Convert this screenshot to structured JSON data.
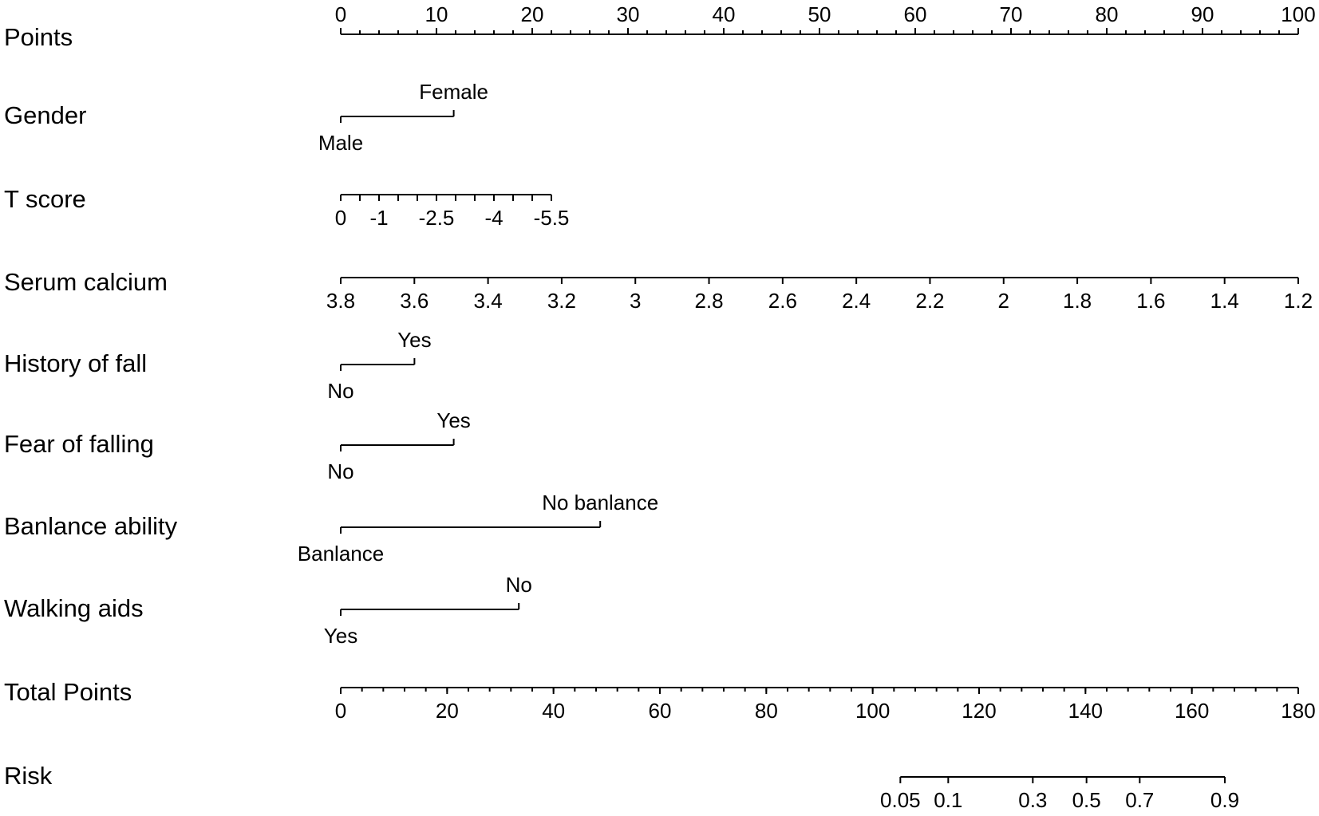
{
  "chart_data": {
    "type": "nomogram",
    "rows": [
      {
        "id": "points",
        "label": "Points",
        "kind": "axis",
        "labels_above": true,
        "scale_value": [
          0,
          100
        ],
        "major": [
          0,
          10,
          20,
          30,
          40,
          50,
          60,
          70,
          80,
          90,
          100
        ],
        "major_labels": [
          "0",
          "10",
          "20",
          "30",
          "40",
          "50",
          "60",
          "70",
          "80",
          "90",
          "100"
        ],
        "minor_step": 2
      },
      {
        "id": "gender",
        "label": "Gender",
        "kind": "categorical",
        "levels": [
          {
            "label": "Male",
            "points": 0
          },
          {
            "label": "Female",
            "points": 11.8
          }
        ]
      },
      {
        "id": "t-score",
        "label": "T score",
        "kind": "axis",
        "labels_above": false,
        "scale_value": [
          0,
          -5.5
        ],
        "scale_points": [
          0,
          22
        ],
        "major": [
          0,
          -0.5,
          -1,
          -1.5,
          -2,
          -2.5,
          -3,
          -3.5,
          -4,
          -4.5,
          -5,
          -5.5
        ],
        "label_at": [
          0,
          -1,
          -2.5,
          -4,
          -5.5
        ],
        "major_labels": [
          "0",
          "-1",
          "-2.5",
          "-4",
          "-5.5"
        ]
      },
      {
        "id": "serum-calcium",
        "label": "Serum calcium",
        "kind": "axis",
        "labels_above": false,
        "scale_value": [
          3.8,
          1.2
        ],
        "scale_points": [
          0,
          100
        ],
        "major": [
          3.8,
          3.6,
          3.4,
          3.2,
          3,
          2.8,
          2.6,
          2.4,
          2.2,
          2,
          1.8,
          1.6,
          1.4,
          1.2
        ],
        "major_labels": [
          "3.8",
          "3.6",
          "3.4",
          "3.2",
          "3",
          "2.8",
          "2.6",
          "2.4",
          "2.2",
          "2",
          "1.8",
          "1.6",
          "1.4",
          "1.2"
        ]
      },
      {
        "id": "history-of-fall",
        "label": "History of fall",
        "kind": "categorical",
        "levels": [
          {
            "label": "No",
            "points": 0
          },
          {
            "label": "Yes",
            "points": 7.7
          }
        ]
      },
      {
        "id": "fear-of-falling",
        "label": "Fear of falling",
        "kind": "categorical",
        "levels": [
          {
            "label": "No",
            "points": 0
          },
          {
            "label": "Yes",
            "points": 11.8
          }
        ]
      },
      {
        "id": "balance-ability",
        "label": "Banlance ability",
        "kind": "categorical",
        "levels": [
          {
            "label": "Banlance",
            "points": 0
          },
          {
            "label": "No banlance",
            "points": 27.1
          }
        ]
      },
      {
        "id": "walking-aids",
        "label": "Walking aids",
        "kind": "categorical",
        "levels": [
          {
            "label": "Yes",
            "points": 0
          },
          {
            "label": "No",
            "points": 18.6
          }
        ]
      },
      {
        "id": "total-points",
        "label": "Total Points",
        "kind": "axis",
        "labels_above": false,
        "scale_value": [
          0,
          180
        ],
        "major": [
          0,
          20,
          40,
          60,
          80,
          100,
          120,
          140,
          160,
          180
        ],
        "major_labels": [
          "0",
          "20",
          "40",
          "60",
          "80",
          "100",
          "120",
          "140",
          "160",
          "180"
        ],
        "minor_step": 4
      },
      {
        "id": "risk",
        "label": "Risk",
        "kind": "risk",
        "values": [
          0.05,
          0.1,
          0.3,
          0.5,
          0.7,
          0.9
        ],
        "major_labels": [
          "0.05",
          "0.1",
          "0.3",
          "0.5",
          "0.7",
          "0.9"
        ],
        "total_points_at": [
          105.2,
          114.2,
          130.1,
          140.2,
          150.2,
          166.2
        ]
      }
    ]
  }
}
